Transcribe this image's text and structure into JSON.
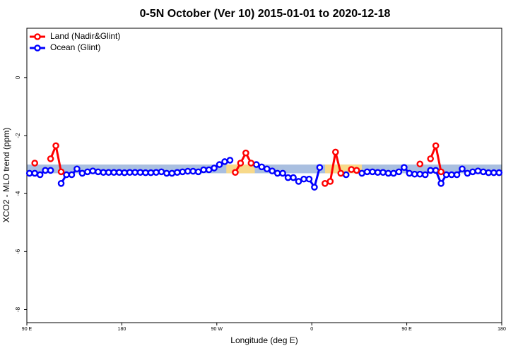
{
  "chart_data": {
    "type": "line",
    "title": "0-5N October (Ver 10)   2015-01-01 to 2020-12-18",
    "x_label": "Longitude (deg E)",
    "y_label": "XCO2 - MLO trend (ppm)",
    "xlim": [
      90,
      540
    ],
    "ylim": [
      -8.45,
      1.7
    ],
    "xticks": [
      {
        "value": 90,
        "label": "90 E"
      },
      180,
      {
        "value": 270,
        "label": "90 W"
      },
      {
        "value": 360,
        "label": "0"
      },
      {
        "value": 450,
        "label": "90 E"
      },
      {
        "value": 540,
        "label": "180"
      }
    ],
    "yticks": [
      0,
      -2,
      -4,
      -6,
      -8
    ],
    "legend": "top-left",
    "bands": [
      {
        "x": [
          90,
          540
        ],
        "y": [
          -3.3,
          -3.0
        ],
        "color": "#a9bfe0"
      },
      {
        "x": [
          279,
          306
        ],
        "y": [
          -3.3,
          -3.0
        ],
        "color": "#f7d98a"
      },
      {
        "x": [
          372.6,
          407.4
        ],
        "y": [
          -3.3,
          -3.0
        ],
        "color": "#f7d98a"
      }
    ],
    "x": [
      92.5,
      97.5,
      102.5,
      107.5,
      112.5,
      117.5,
      122.5,
      127.5,
      132.5,
      137.5,
      142.5,
      147.5,
      152.5,
      157.5,
      162.5,
      167.5,
      172.5,
      177.5,
      182.5,
      187.5,
      192.5,
      197.5,
      202.5,
      207.5,
      212.5,
      217.5,
      222.5,
      227.5,
      232.5,
      237.5,
      242.5,
      247.5,
      252.5,
      257.5,
      262.5,
      267.5,
      272.5,
      277.5,
      282.5,
      287.5,
      292.5,
      297.5,
      302.5,
      307.5,
      312.5,
      317.5,
      322.5,
      327.5,
      332.5,
      337.5,
      342.5,
      347.5,
      352.5,
      357.5,
      362.5,
      367.5,
      372.5,
      377.5,
      382.5,
      387.5,
      392.5,
      397.5,
      402.5,
      407.5,
      412.5,
      417.5,
      422.5,
      427.5,
      432.5,
      437.5,
      442.5,
      447.5,
      452.5,
      457.5,
      462.5,
      467.5,
      472.5,
      477.5,
      482.5,
      487.5,
      492.5,
      497.5,
      502.5,
      507.5,
      512.5,
      517.5,
      522.5,
      527.5,
      532.5,
      537.5
    ],
    "series": [
      {
        "name": "Land (Nadir&Glint)",
        "color": "#ff0000",
        "values": [
          null,
          -2.95,
          null,
          null,
          -2.8,
          -2.35,
          -3.25,
          null,
          null,
          null,
          null,
          null,
          null,
          null,
          null,
          null,
          null,
          null,
          null,
          null,
          null,
          null,
          null,
          null,
          null,
          null,
          null,
          null,
          null,
          null,
          null,
          null,
          null,
          null,
          null,
          null,
          null,
          null,
          null,
          -3.27,
          -2.95,
          -2.6,
          -2.95,
          null,
          null,
          null,
          null,
          null,
          null,
          null,
          null,
          null,
          null,
          null,
          null,
          null,
          -3.65,
          -3.58,
          -2.57,
          -3.3,
          null,
          -3.17,
          -3.2,
          null,
          null,
          null,
          null,
          null,
          null,
          null,
          null,
          null,
          null,
          null,
          -2.98,
          null,
          -2.8,
          -2.35,
          -3.25,
          null,
          null,
          null,
          null,
          null,
          null,
          null,
          null,
          null,
          null,
          null
        ]
      },
      {
        "name": "Ocean (Glint)",
        "color": "#0000ff",
        "values": [
          -3.3,
          -3.3,
          -3.35,
          -3.2,
          -3.2,
          null,
          -3.65,
          -3.35,
          -3.35,
          -3.15,
          -3.3,
          -3.25,
          -3.22,
          -3.25,
          -3.27,
          -3.27,
          -3.27,
          -3.27,
          -3.28,
          -3.27,
          -3.27,
          -3.27,
          -3.28,
          -3.28,
          -3.27,
          -3.25,
          -3.3,
          -3.3,
          -3.27,
          -3.25,
          -3.23,
          -3.23,
          -3.25,
          -3.18,
          -3.18,
          -3.12,
          -3.0,
          -2.9,
          -2.85,
          null,
          null,
          null,
          null,
          -3.0,
          -3.08,
          -3.15,
          -3.22,
          -3.3,
          -3.3,
          -3.45,
          -3.45,
          -3.58,
          -3.5,
          -3.5,
          -3.78,
          -3.1,
          null,
          null,
          null,
          null,
          -3.35,
          null,
          null,
          -3.3,
          -3.25,
          -3.25,
          -3.27,
          -3.27,
          -3.3,
          -3.3,
          -3.25,
          -3.1,
          -3.3,
          -3.33,
          -3.33,
          -3.35,
          -3.2,
          -3.2,
          -3.65,
          -3.35,
          -3.35,
          -3.35,
          -3.15,
          -3.3,
          -3.25,
          -3.22,
          -3.25,
          -3.28,
          -3.28,
          -3.28
        ]
      }
    ]
  }
}
